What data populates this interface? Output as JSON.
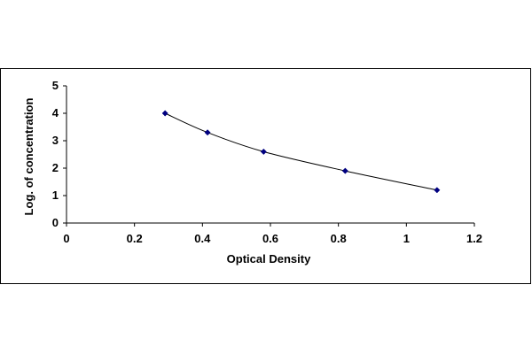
{
  "chart_data": {
    "type": "line",
    "title": "",
    "xlabel": "Optical Density",
    "ylabel": "Log. of concentration",
    "xlim": [
      0,
      1.2
    ],
    "ylim": [
      0,
      5
    ],
    "x_ticks": [
      "0",
      "0.2",
      "0.4",
      "0.6",
      "0.8",
      "1",
      "1.2"
    ],
    "y_ticks": [
      "0",
      "1",
      "2",
      "3",
      "4",
      "5"
    ],
    "grid": false,
    "legend": "none",
    "series": [
      {
        "x": [
          0.29,
          0.415,
          0.58,
          0.82,
          1.09
        ],
        "y": [
          4.0,
          3.3,
          2.6,
          1.9,
          1.2
        ],
        "color": "#000080",
        "marker": "diamond"
      }
    ]
  }
}
